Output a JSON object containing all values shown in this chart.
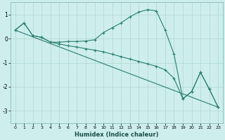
{
  "xlabel": "Humidex (Indice chaleur)",
  "background_color": "#cdeeed",
  "line_color": "#2a7d6f",
  "grid_color": "#b0d8d0",
  "xlim": [
    -0.5,
    23.5
  ],
  "ylim": [
    -3.5,
    1.5
  ],
  "yticks": [
    -3,
    -2,
    -1,
    0,
    1
  ],
  "xticks": [
    0,
    1,
    2,
    3,
    4,
    5,
    6,
    7,
    8,
    9,
    10,
    11,
    12,
    13,
    14,
    15,
    16,
    17,
    18,
    19,
    20,
    21,
    22,
    23
  ],
  "series1_x": [
    0,
    1,
    2,
    3,
    4,
    5,
    6,
    7,
    8,
    9,
    10,
    11,
    12,
    13,
    14,
    15,
    16,
    17,
    18,
    19,
    20,
    21,
    22,
    23
  ],
  "series1_y": [
    0.35,
    0.65,
    0.12,
    0.05,
    -0.15,
    -0.15,
    -0.12,
    -0.12,
    -0.1,
    -0.05,
    0.25,
    0.45,
    0.65,
    0.9,
    1.1,
    1.2,
    1.15,
    0.35,
    -0.65,
    -2.5,
    -2.2,
    -1.4,
    -2.1,
    -2.85
  ],
  "series2_x": [
    0,
    1,
    2,
    3,
    4,
    5,
    6,
    7,
    8,
    9,
    10,
    11,
    12,
    13,
    14,
    15,
    16,
    17,
    18,
    19,
    20,
    21,
    22,
    23
  ],
  "series2_y": [
    0.35,
    0.65,
    0.12,
    0.05,
    -0.15,
    -0.22,
    -0.3,
    -0.35,
    -0.42,
    -0.48,
    -0.55,
    -0.65,
    -0.75,
    -0.85,
    -0.95,
    -1.05,
    -1.15,
    -1.3,
    -1.65,
    -2.5,
    -2.2,
    -1.4,
    -2.1,
    -2.85
  ],
  "series3_x": [
    0,
    23
  ],
  "series3_y": [
    0.35,
    -2.85
  ],
  "marker": "+",
  "markersize": 3.5,
  "linewidth": 0.8
}
